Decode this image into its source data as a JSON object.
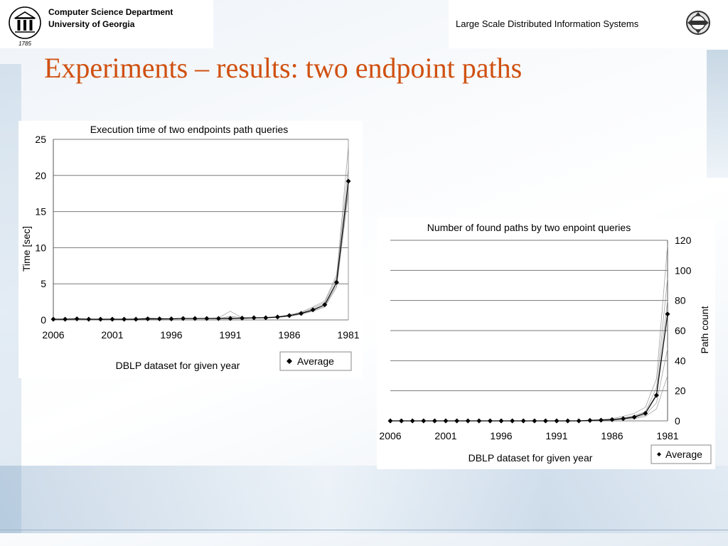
{
  "header": {
    "department": "Computer Science Department",
    "university": "University of Georgia",
    "seal_year": "1785",
    "system_title": "Large Scale Distributed Information Systems"
  },
  "slide": {
    "title": "Experiments – results: two endpoint paths"
  },
  "colors": {
    "title": "#d05010",
    "series": "#000000",
    "runs": "#8c8c8c",
    "grid": "#7a7a7a"
  },
  "chart_data": [
    {
      "type": "line",
      "title": "Execution time of two endpoints path queries",
      "xlabel": "DBLP dataset for given year",
      "ylabel": "Time [sec]",
      "x_tick_labels": [
        "2006",
        "2001",
        "1996",
        "1991",
        "1986",
        "1981"
      ],
      "y_tick_labels": [
        "0",
        "5",
        "10",
        "15",
        "20",
        "25"
      ],
      "xlim": [
        2006,
        1981
      ],
      "ylim": [
        0,
        25
      ],
      "y_axis_side": "left",
      "grid": "horizontal",
      "legend": {
        "position": "bottom-right",
        "entries": [
          "Average"
        ]
      },
      "x": [
        2006,
        2005,
        2004,
        2003,
        2002,
        2001,
        2000,
        1999,
        1998,
        1997,
        1996,
        1995,
        1994,
        1993,
        1992,
        1991,
        1990,
        1989,
        1988,
        1987,
        1986,
        1985,
        1984,
        1983,
        1982,
        1981
      ],
      "series": [
        {
          "name": "Average",
          "marker": "diamond",
          "values": [
            0.1,
            0.1,
            0.15,
            0.1,
            0.1,
            0.1,
            0.1,
            0.1,
            0.15,
            0.15,
            0.15,
            0.2,
            0.2,
            0.2,
            0.2,
            0.2,
            0.25,
            0.3,
            0.3,
            0.4,
            0.6,
            0.9,
            1.4,
            2.1,
            5.2,
            19.2
          ]
        }
      ],
      "runs": [
        [
          0.1,
          0.1,
          0.15,
          0.1,
          0.1,
          0.1,
          0.1,
          0.15,
          0.3,
          0.2,
          0.15,
          0.2,
          0.2,
          0.2,
          0.3,
          1.2,
          0.3,
          0.3,
          0.3,
          0.4,
          0.6,
          1.0,
          1.6,
          2.4,
          5.8,
          24.0
        ],
        [
          0.1,
          0.1,
          0.1,
          0.1,
          0.1,
          0.1,
          0.1,
          0.1,
          0.1,
          0.15,
          0.15,
          0.2,
          0.2,
          0.2,
          0.2,
          0.3,
          0.2,
          0.25,
          0.3,
          0.35,
          0.5,
          0.8,
          1.2,
          1.8,
          4.5,
          17.5
        ],
        [
          0.1,
          0.1,
          0.15,
          0.1,
          0.1,
          0.1,
          0.1,
          0.1,
          0.2,
          0.15,
          0.15,
          0.2,
          0.2,
          0.2,
          0.2,
          0.5,
          0.3,
          0.3,
          0.35,
          0.45,
          0.7,
          1.1,
          1.8,
          2.6,
          6.2,
          21.0
        ],
        [
          0.1,
          0.1,
          0.1,
          0.1,
          0.1,
          0.1,
          0.1,
          0.1,
          0.1,
          0.1,
          0.15,
          0.2,
          0.2,
          0.2,
          0.2,
          0.2,
          0.2,
          0.25,
          0.3,
          0.35,
          0.55,
          0.8,
          1.3,
          1.9,
          4.8,
          18.2
        ]
      ]
    },
    {
      "type": "line",
      "title": "Number of found paths by two enpoint queries",
      "xlabel": "DBLP dataset for given year",
      "ylabel": "Path count",
      "x_tick_labels": [
        "2006",
        "2001",
        "1996",
        "1991",
        "1986",
        "1981"
      ],
      "y_tick_labels": [
        "0",
        "20",
        "40",
        "60",
        "80",
        "100",
        "120"
      ],
      "xlim": [
        2006,
        1981
      ],
      "ylim": [
        0,
        120
      ],
      "y_axis_side": "right",
      "grid": "horizontal",
      "legend": {
        "position": "bottom-right",
        "entries": [
          "Average"
        ]
      },
      "x": [
        2006,
        2005,
        2004,
        2003,
        2002,
        2001,
        2000,
        1999,
        1998,
        1997,
        1996,
        1995,
        1994,
        1993,
        1992,
        1991,
        1990,
        1989,
        1988,
        1987,
        1986,
        1985,
        1984,
        1983,
        1982,
        1981
      ],
      "series": [
        {
          "name": "Average",
          "marker": "diamond",
          "values": [
            0,
            0,
            0,
            0,
            0,
            0,
            0,
            0,
            0,
            0,
            0,
            0,
            0,
            0,
            0,
            0,
            0,
            0,
            0.3,
            0.5,
            0.8,
            1.5,
            2.5,
            5.0,
            17.0,
            71.0
          ]
        }
      ],
      "runs": [
        [
          0,
          0,
          0,
          0,
          0,
          0,
          0,
          0,
          0,
          0,
          0,
          0,
          0,
          0,
          0,
          0,
          0,
          0,
          0.5,
          1.0,
          1.5,
          3.0,
          5.0,
          9.0,
          28.0,
          117.0
        ],
        [
          0,
          0,
          0,
          0,
          0,
          0,
          0,
          0,
          0,
          0,
          0,
          0,
          0,
          0,
          0,
          0,
          0,
          0,
          0.3,
          0.6,
          1.0,
          2.0,
          3.5,
          6.0,
          22.0,
          95.0
        ],
        [
          0,
          0,
          0,
          0,
          0,
          0,
          0,
          0,
          0,
          0,
          0,
          0,
          0,
          0,
          0,
          0,
          0,
          0,
          0.2,
          0.4,
          0.6,
          1.2,
          2.0,
          4.0,
          12.0,
          48.0
        ],
        [
          0,
          0,
          0,
          0,
          0,
          0,
          0,
          0,
          0,
          0,
          0,
          0,
          0,
          0,
          0,
          0,
          0,
          0,
          0.1,
          0.3,
          0.5,
          1.0,
          1.5,
          3.0,
          8.0,
          30.0
        ],
        [
          0,
          0,
          0,
          0,
          0,
          0,
          0,
          0,
          0,
          0,
          0,
          0,
          0,
          0,
          0,
          0,
          0,
          0,
          0.2,
          0.5,
          0.8,
          1.8,
          3.0,
          5.5,
          18.0,
          80.0
        ]
      ]
    }
  ]
}
